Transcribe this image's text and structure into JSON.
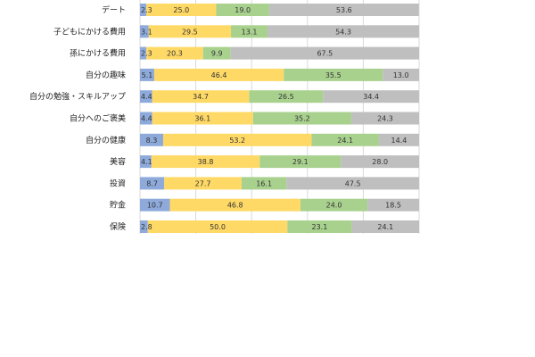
{
  "chart_data": {
    "type": "bar",
    "orientation": "horizontal",
    "stacked": true,
    "normalized": true,
    "xlim": [
      0,
      100
    ],
    "grid": true,
    "legend": "none",
    "categories": [
      "デート",
      "子どもにかける費用",
      "孫にかける費用",
      "自分の趣味",
      "自分の勉強・スキルアップ",
      "自分へのご褒美",
      "自分の健康",
      "美容",
      "投資",
      "貯金",
      "保険"
    ],
    "series": [
      {
        "color": "#8eaadb",
        "values": [
          2.3,
          3.1,
          2.3,
          5.1,
          4.4,
          4.4,
          8.3,
          4.1,
          8.7,
          10.7,
          2.8
        ]
      },
      {
        "color": "#ffd966",
        "values": [
          25.0,
          29.5,
          20.3,
          46.4,
          34.7,
          36.1,
          53.2,
          38.8,
          27.7,
          46.8,
          50.0
        ]
      },
      {
        "color": "#a9d18e",
        "values": [
          19.0,
          13.1,
          9.9,
          35.5,
          26.5,
          35.2,
          24.1,
          29.1,
          16.1,
          24.0,
          23.1
        ]
      },
      {
        "color": "#bfbfbf",
        "values": [
          53.6,
          54.3,
          67.5,
          13.0,
          34.4,
          24.3,
          14.4,
          28.0,
          47.5,
          18.5,
          24.1
        ]
      }
    ],
    "value_labels": [
      [
        "2.3",
        "25.0",
        "19.0",
        "53.6"
      ],
      [
        "3.1",
        "29.5",
        "13.1",
        "54.3"
      ],
      [
        "2.3",
        "20.3",
        "9.9",
        "67.5"
      ],
      [
        "5.1",
        "46.4",
        "35.5",
        "13.0"
      ],
      [
        "4.4",
        "34.7",
        "26.5",
        "34.4"
      ],
      [
        "4.4",
        "36.1",
        "35.2",
        "24.3"
      ],
      [
        "8.3",
        "53.2",
        "24.1",
        "14.4"
      ],
      [
        "4.1",
        "38.8",
        "29.1",
        "28.0"
      ],
      [
        "8.7",
        "27.7",
        "16.1",
        "47.5"
      ],
      [
        "10.7",
        "46.8",
        "24.0",
        "18.5"
      ],
      [
        "2.8",
        "50.0",
        "23.1",
        "24.1"
      ]
    ]
  }
}
